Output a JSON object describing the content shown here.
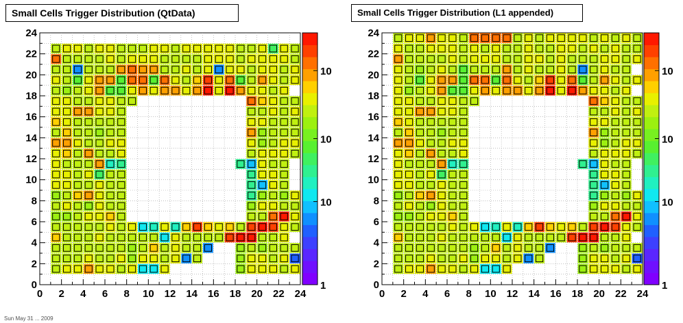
{
  "footer": "Sun May 31 ... 2009",
  "palette": [
    "#8000ff",
    "#6f10ff",
    "#5a26ff",
    "#3d40ff",
    "#2060ff",
    "#1090ff",
    "#10c0ff",
    "#10e8f0",
    "#20f0c0",
    "#30f090",
    "#40f060",
    "#58f030",
    "#78f020",
    "#9cf010",
    "#c0f010",
    "#e8f000",
    "#ffd000",
    "#ffa000",
    "#ff7000",
    "#ff4000",
    "#ff1800"
  ],
  "chart_data": [
    {
      "type": "heatmap",
      "title": "Small Cells Trigger Distribution (QtData)",
      "xlim": [
        0,
        24
      ],
      "ylim": [
        0,
        24
      ],
      "xticks": [
        "0",
        "2",
        "4",
        "6",
        "8",
        "10",
        "12",
        "14",
        "16",
        "18",
        "20",
        "22",
        "24"
      ],
      "yticks": [
        "0",
        "2",
        "4",
        "6",
        "8",
        "10",
        "12",
        "14",
        "16",
        "18",
        "20",
        "22",
        "24"
      ],
      "colorbar_scale": "log",
      "colorbar_labels": [
        "1",
        "10",
        "10",
        "10"
      ],
      "rows": [
        "..........................",
        "..........................",
        ".LMMLMNLLLMMLMMMMMLLMFMLM.",
        ".RLLLLMLMMMLLLLMMMLMMMMLL.",
        ".LL8LLLPRPPLLMLN7NMLMMLM..",
        ".MLHMPPHRRHRNLOSMRHLPMLM..",
        ".LJLNPHHNPNPPNPUMUPNNLN...",
        ".NNLLMMLL..........ROMLLM.",
        ".MMPPMML...........LLMLMN.",
        ".ONLLLLL...........NNLLLL.",
        ".LOLLJLL...........PJLLL..",
        ".PPNLLMM...........MKLNM..",
        ".MOLPLLM...........LMNNL..",
        ".NLLLPCE..........E9NLL...",
        ".MNLNFLL...........EMNL...",
        ".MNLLNLL...........E9ML...",
        ".JLOPNLL...........EJLKM..",
        ".LMLKNLL...........JNMLLM.",
        ".KKLMNOL...........LLRUMM.",
        ".LLLLLMLMBCMCOSONOLTUTNL..",
        ".OLLLNLLLLLBNLLLLSUULLN...",
        ".LLLLLLLKLOLNLL7..JLJLLL..",
        ".LLLNLLMKMMLN8L...KNMLM6..",
        ".LMMPMMLMAAM......JMMMLN..",
        ".........................."
      ]
    },
    {
      "type": "heatmap",
      "title": "Small Cells Trigger Distribution (L1 appended)",
      "xlim": [
        0,
        24
      ],
      "ylim": [
        0,
        24
      ],
      "xticks": [
        "0",
        "2",
        "4",
        "6",
        "8",
        "10",
        "12",
        "14",
        "16",
        "18",
        "20",
        "22",
        "24"
      ],
      "yticks": [
        "0",
        "2",
        "4",
        "6",
        "8",
        "10",
        "12",
        "14",
        "16",
        "18",
        "20",
        "22",
        "24"
      ],
      "colorbar_scale": "log",
      "colorbar_labels": [
        "1",
        "10",
        "10",
        "10"
      ],
      "rows": [
        "..........................",
        ".LNMPMMLRRRRLMLMMMMLMLMLM.",
        ".MLLMMMLMLMLLMLLMMLMLMLL..",
        ".QLLLLMLMMMLLMMLMLLLMMLM..",
        ".MLJLMLHLLLPLMLLML8LMLL...",
        ".MLHMPPHRRHRNLOSMRHLPMLM..",
        ".NJLNPHHNPNPPNPUMUPNNLN...",
        ".NNLLMMLL..........ROMLLM.",
        ".MMPPMML...........LLMLMN.",
        ".ONLLLLL...........NNLLLL.",
        ".LOLLJLL...........PJLLL..",
        ".PPNLLMM...........MKLNM..",
        ".MOLPLLM...........LMNNL..",
        ".NLLLPCE..........E9NLL...",
        ".MNLNFLL...........EMNL...",
        ".MNLLNLL...........E9ML...",
        ".JLOPNLL...........EJLKM..",
        ".LMLKNLL...........JNMLLM.",
        ".KKLMNOL...........LLRUMM.",
        ".LLLLLMLMBCMCOSONOLTUTNL..",
        ".OLLLNLLLLLBNLLLLSUULLN...",
        ".LLLLLLLKLOLNLL7..JLJLLL..",
        ".LLLNLLMKMMLN8L...KNMLM6..",
        ".LMMPMMLMAAM......JMMMLN..",
        ".........................."
      ]
    }
  ]
}
